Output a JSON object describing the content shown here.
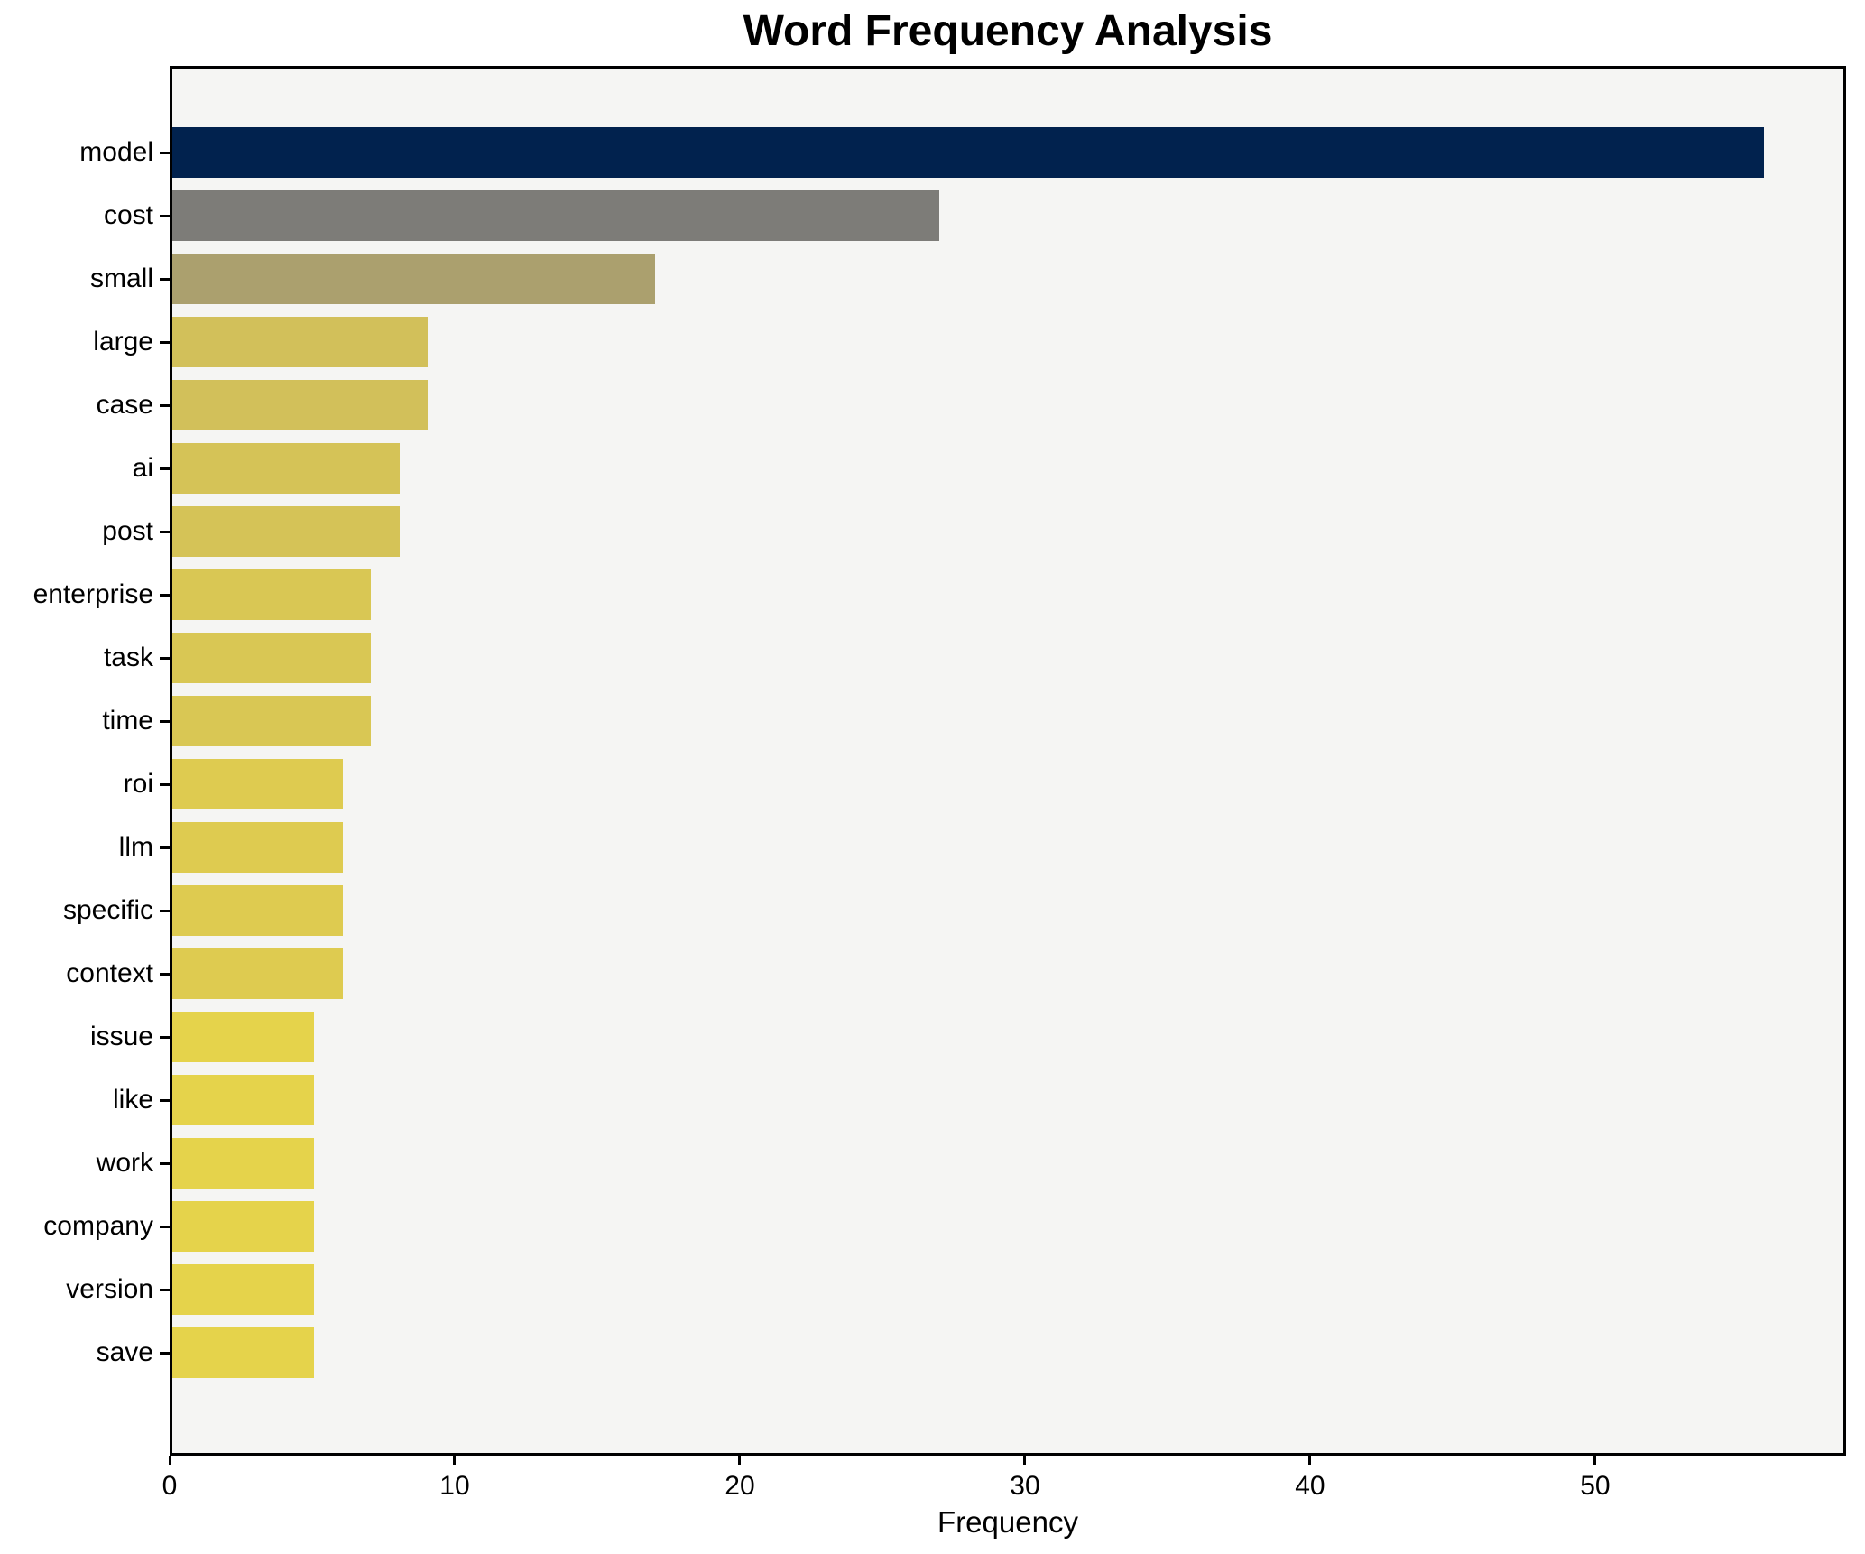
{
  "title": "Word Frequency Analysis",
  "chart_data": {
    "type": "bar",
    "orientation": "horizontal",
    "title": "Word Frequency Analysis",
    "xlabel": "Frequency",
    "ylabel": "",
    "xlim": [
      0,
      58.8
    ],
    "x_ticks": [
      "0",
      "10",
      "20",
      "30",
      "40",
      "50"
    ],
    "x_tick_values": [
      0,
      10,
      20,
      30,
      40,
      50
    ],
    "grid": false,
    "legend": false,
    "plot_background": "#f5f5f3",
    "figure_background": "#ffffff",
    "spine_color": "#000000",
    "categories": [
      "model",
      "cost",
      "small",
      "large",
      "case",
      "ai",
      "post",
      "enterprise",
      "task",
      "time",
      "roi",
      "llm",
      "specific",
      "context",
      "issue",
      "like",
      "work",
      "company",
      "version",
      "save"
    ],
    "values": [
      56,
      27,
      17,
      9,
      9,
      8,
      8,
      7,
      7,
      7,
      6,
      6,
      6,
      6,
      5,
      5,
      5,
      5,
      5,
      5
    ],
    "bar_colors": [
      "#01224e",
      "#7d7c78",
      "#aba06e",
      "#d2c05a",
      "#d2c05a",
      "#d5c357",
      "#d5c357",
      "#d9c754",
      "#d9c754",
      "#d9c754",
      "#decb50",
      "#decb50",
      "#decb50",
      "#decb50",
      "#e5d34b",
      "#e5d34b",
      "#e5d34b",
      "#e5d34b",
      "#e5d34b",
      "#e5d34b"
    ]
  }
}
